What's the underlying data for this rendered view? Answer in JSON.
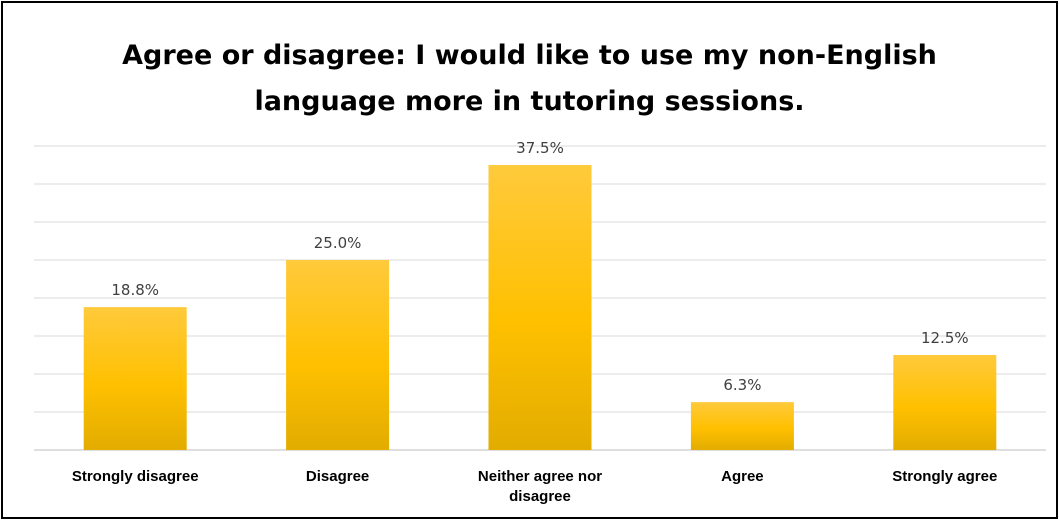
{
  "chart_data": {
    "type": "bar",
    "title": [
      "Agree or disagree: I would like to use my non-English",
      "language more in tutoring sessions."
    ],
    "categories": [
      [
        "Strongly disagree"
      ],
      [
        "Disagree"
      ],
      [
        "Neither agree nor",
        "disagree"
      ],
      [
        "Agree"
      ],
      [
        "Strongly agree"
      ]
    ],
    "values": [
      18.8,
      25.0,
      37.5,
      6.3,
      12.5
    ],
    "value_labels": [
      "18.8%",
      "25.0%",
      "37.5%",
      "6.3%",
      "12.5%"
    ],
    "xlabel": "",
    "ylabel": "",
    "ylim": [
      0,
      40
    ],
    "grid": true,
    "legend": "none",
    "colors": {
      "bar_top": "#FFCA3C",
      "bar_mid": "#FFC000",
      "bar_bottom": "#E2AC00",
      "grid": "#D9D9D9",
      "axis": "#BFBFBF"
    }
  }
}
